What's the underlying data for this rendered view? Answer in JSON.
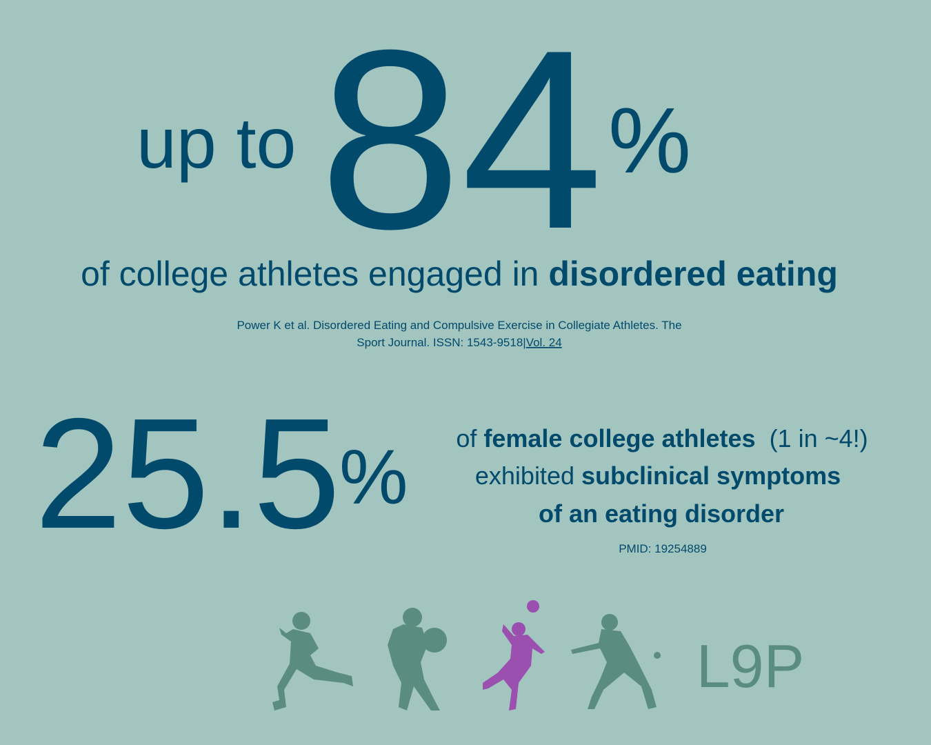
{
  "headline": {
    "prefix": "up to",
    "number": "84",
    "unit": "%"
  },
  "headline_caption": {
    "text": "of college athletes engaged in ",
    "emphasis": "disordered eating"
  },
  "citation": {
    "line1": "Power K et al. Disordered Eating and Compulsive Exercise in Collegiate Athletes. The",
    "line2": "Sport Journal. ISSN: 1543-9518|",
    "link": "Vol. 24"
  },
  "stat2": {
    "number": "25.5",
    "unit": "%"
  },
  "stat2_caption": {
    "line1": {
      "text": "of ",
      "emphasis": "female college athletes",
      "suffix": "  (1 in ~4!)"
    },
    "line2": {
      "text": "exhibited ",
      "emphasis": "subclinical symptoms"
    },
    "line3": {
      "emphasis": "of an eating disorder"
    },
    "source": "PMID: 19254889"
  },
  "logo": "L9P"
}
